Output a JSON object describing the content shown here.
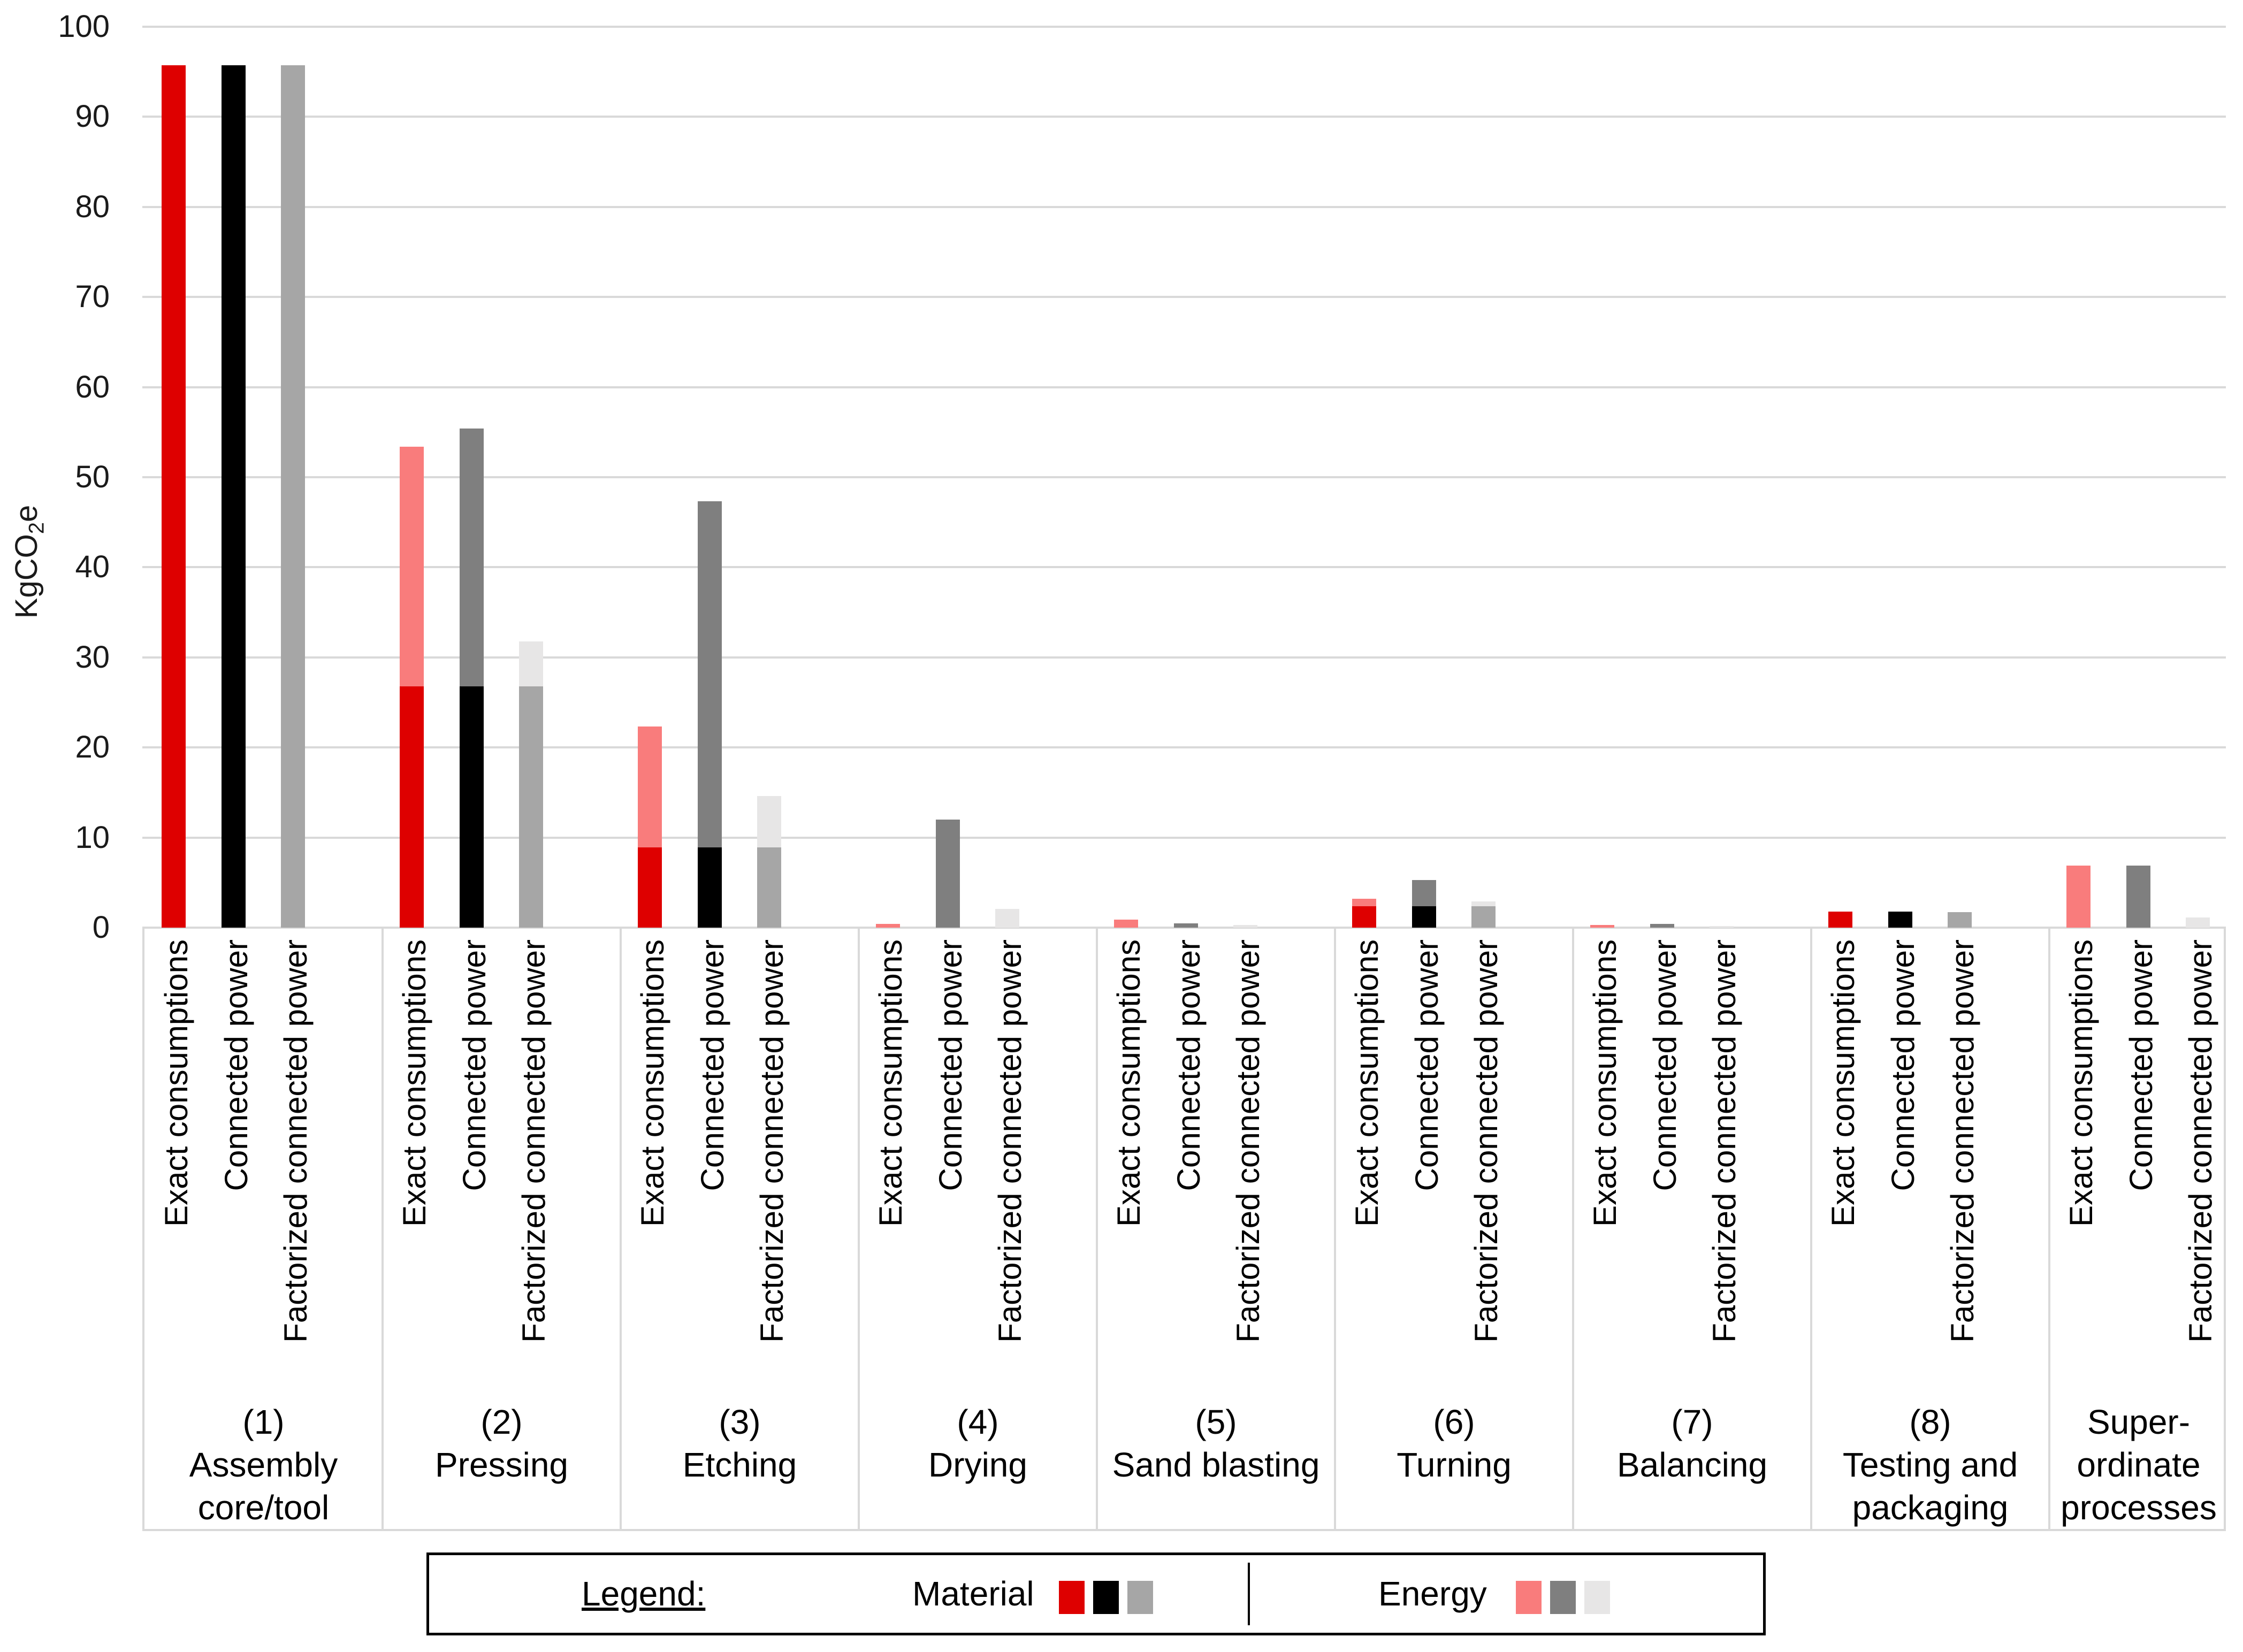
{
  "chart_data": {
    "type": "bar",
    "stacked": true,
    "title": "",
    "ylabel_parts": {
      "prefix": "KgCO",
      "sub": "2",
      "suffix": "e"
    },
    "ylim": [
      0,
      100
    ],
    "ytick_step": 10,
    "grid": "horizontal",
    "legend_position": "bottom",
    "bar_labels": [
      "Exact consumptions",
      "Connected power",
      "Factorized connected power"
    ],
    "stack_series": [
      "Material",
      "Energy"
    ],
    "colors": {
      "material": [
        "#DE0000",
        "#000000",
        "#A6A6A6"
      ],
      "energy": [
        "#F97C7C",
        "#7F7F7F",
        "#E7E6E6"
      ],
      "gridline": "#D9D9D9",
      "axis_border": "#D9D9D9"
    },
    "groups": [
      {
        "label_lines": [
          "(1)",
          "Assembly",
          "core/tool"
        ],
        "bars": [
          {
            "material": 95.7,
            "energy": 0
          },
          {
            "material": 95.7,
            "energy": 0
          },
          {
            "material": 95.7,
            "energy": 0
          }
        ]
      },
      {
        "label_lines": [
          "(2)",
          "Pressing"
        ],
        "bars": [
          {
            "material": 26.8,
            "energy": 26.6
          },
          {
            "material": 26.8,
            "energy": 28.6
          },
          {
            "material": 26.8,
            "energy": 5.0
          }
        ]
      },
      {
        "label_lines": [
          "(3)",
          "Etching"
        ],
        "bars": [
          {
            "material": 8.9,
            "energy": 13.4
          },
          {
            "material": 8.9,
            "energy": 38.4
          },
          {
            "material": 8.9,
            "energy": 5.7
          }
        ]
      },
      {
        "label_lines": [
          "(4)",
          "Drying"
        ],
        "bars": [
          {
            "material": 0,
            "energy": 0.4
          },
          {
            "material": 0,
            "energy": 12.0
          },
          {
            "material": 0,
            "energy": 2.1
          }
        ]
      },
      {
        "label_lines": [
          "(5)",
          "Sand blasting"
        ],
        "bars": [
          {
            "material": 0,
            "energy": 0.9
          },
          {
            "material": 0,
            "energy": 0.5
          },
          {
            "material": 0,
            "energy": 0.3
          }
        ]
      },
      {
        "label_lines": [
          "(6)",
          "Turning"
        ],
        "bars": [
          {
            "material": 2.4,
            "energy": 0.8
          },
          {
            "material": 2.4,
            "energy": 2.9
          },
          {
            "material": 2.4,
            "energy": 0.5
          }
        ]
      },
      {
        "label_lines": [
          "(7)",
          "Balancing"
        ],
        "bars": [
          {
            "material": 0,
            "energy": 0.3
          },
          {
            "material": 0,
            "energy": 0.4
          },
          {
            "material": 0,
            "energy": 0.15
          }
        ]
      },
      {
        "label_lines": [
          "(8)",
          "Testing and",
          "packaging"
        ],
        "bars": [
          {
            "material": 1.8,
            "energy": 0
          },
          {
            "material": 1.8,
            "energy": 0
          },
          {
            "material": 1.7,
            "energy": 0
          }
        ]
      },
      {
        "label_lines": [
          "Super-",
          "ordinate",
          "processes"
        ],
        "bars": [
          {
            "material": 0,
            "energy": 6.9
          },
          {
            "material": 0,
            "energy": 6.9
          },
          {
            "material": 0,
            "energy": 1.1
          }
        ]
      }
    ]
  },
  "legend": {
    "title": "Legend:",
    "material_label": "Material",
    "energy_label": "Energy"
  }
}
